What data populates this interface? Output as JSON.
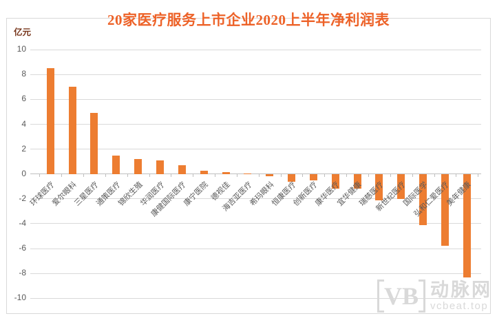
{
  "chart_data": {
    "type": "bar",
    "title": "20家医疗服务上市企业2020上半年净利润表",
    "unit_label": "亿元",
    "categories": [
      "环球医疗",
      "爱尔眼科",
      "三星医疗",
      "通策医疗",
      "锦欣生殖",
      "华润医疗",
      "康健国际医疗",
      "康宁医院",
      "德视佳",
      "海吉亚医疗",
      "希玛眼科",
      "恒康医疗",
      "创新医疗",
      "康华医疗",
      "宜华健康",
      "瑞慈医疗",
      "新世纪医疗",
      "国际医学",
      "弘和仁爱医疗",
      "美年健康"
    ],
    "values": [
      8.5,
      7.0,
      4.9,
      1.5,
      1.2,
      1.1,
      0.7,
      0.25,
      0.15,
      0.05,
      -0.2,
      -0.6,
      -0.5,
      -1.2,
      -1.2,
      -2.1,
      -2.0,
      -4.1,
      -5.8,
      -8.3
    ],
    "ylim": [
      -10,
      10
    ],
    "ytick_step": 2,
    "yticks": [
      -10,
      -8,
      -6,
      -4,
      -2,
      0,
      2,
      4,
      6,
      8,
      10
    ],
    "grid": true,
    "legend": "none",
    "bar_color": "#ED7D31"
  },
  "colors": {
    "title": "#ED6228",
    "axis_text": "#595959",
    "unit_text": "#76341A",
    "gridline": "#D9D9D9",
    "zero_line": "#BFBFBF",
    "frame_border": "#D9D9D9",
    "watermark": "#D9D9D9"
  },
  "watermark": {
    "logo": "VB",
    "name": "动脉网",
    "url": "vcbeat.top"
  }
}
